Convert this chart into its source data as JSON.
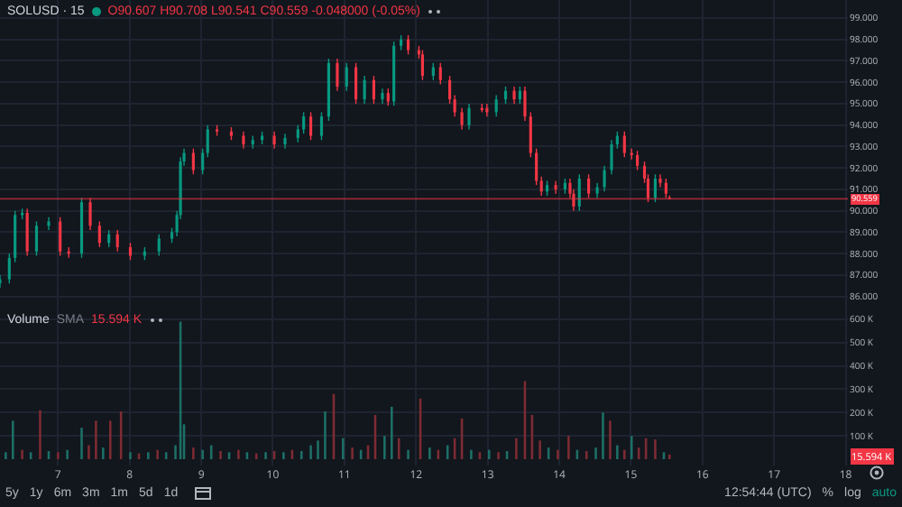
{
  "chart_data": [
    {
      "type": "candlestick",
      "title": "SOLUSD · 15",
      "annotations": [
        "O90.607 H90.708 L90.541 C90.559 -0.048000 (-0.05%)"
      ],
      "x": [
        6.19,
        6.32,
        6.4,
        6.5,
        6.57,
        6.7,
        6.87,
        7.03,
        7.15,
        7.33,
        7.45,
        7.58,
        7.71,
        7.83,
        8.01,
        8.21,
        8.41,
        8.59,
        8.66,
        8.71,
        8.76,
        8.89,
        9.02,
        9.09,
        9.22,
        9.42,
        9.59,
        9.72,
        9.85,
        10.02,
        10.17,
        10.35,
        10.43,
        10.53,
        10.68,
        10.78,
        10.9,
        11.03,
        11.16,
        11.28,
        11.41,
        11.53,
        11.61,
        11.69,
        11.79,
        11.89,
        12.04,
        12.09,
        12.24,
        12.34,
        12.47,
        12.54,
        12.64,
        12.74,
        12.92,
        12.99,
        13.12,
        13.25,
        13.37,
        13.45,
        13.52,
        13.6,
        13.68,
        13.75,
        13.83,
        13.95,
        14.08,
        14.15,
        14.2,
        14.28,
        14.41,
        14.53,
        14.63,
        14.73,
        14.81,
        14.91,
        15.01,
        15.09,
        15.19,
        15.24,
        15.34,
        15.41,
        15.49,
        15.54
      ],
      "ohlc": [
        [
          86.6,
          87.0,
          86.4,
          86.8
        ],
        [
          86.8,
          88.0,
          86.6,
          87.8
        ],
        [
          87.8,
          90.0,
          87.6,
          89.8
        ],
        [
          89.8,
          90.1,
          89.6,
          89.9
        ],
        [
          89.9,
          90.1,
          87.9,
          88.1
        ],
        [
          88.1,
          89.5,
          87.9,
          89.3
        ],
        [
          89.3,
          89.7,
          89.1,
          89.5
        ],
        [
          89.5,
          89.7,
          87.9,
          88.1
        ],
        [
          88.1,
          88.3,
          87.8,
          88.0
        ],
        [
          88.0,
          90.6,
          87.8,
          90.4
        ],
        [
          90.4,
          90.6,
          89.1,
          89.3
        ],
        [
          89.3,
          89.5,
          88.3,
          88.5
        ],
        [
          88.5,
          89.1,
          88.3,
          88.9
        ],
        [
          88.9,
          89.1,
          88.1,
          88.3
        ],
        [
          88.3,
          88.5,
          87.7,
          87.9
        ],
        [
          87.9,
          88.3,
          87.7,
          88.1
        ],
        [
          88.1,
          88.9,
          87.9,
          88.7
        ],
        [
          88.7,
          89.2,
          88.5,
          89.0
        ],
        [
          89.0,
          90.0,
          88.8,
          89.8
        ],
        [
          89.8,
          92.5,
          89.6,
          92.3
        ],
        [
          92.3,
          92.9,
          92.1,
          92.7
        ],
        [
          92.7,
          92.9,
          91.7,
          91.9
        ],
        [
          91.9,
          92.9,
          91.7,
          92.7
        ],
        [
          92.7,
          94.0,
          92.5,
          93.8
        ],
        [
          93.8,
          94.0,
          93.5,
          93.7
        ],
        [
          93.7,
          93.9,
          93.3,
          93.5
        ],
        [
          93.5,
          93.7,
          92.9,
          93.1
        ],
        [
          93.1,
          93.5,
          92.9,
          93.3
        ],
        [
          93.3,
          93.7,
          93.1,
          93.5
        ],
        [
          93.5,
          93.7,
          92.9,
          93.1
        ],
        [
          93.1,
          93.6,
          92.9,
          93.4
        ],
        [
          93.4,
          94.0,
          93.2,
          93.8
        ],
        [
          93.8,
          94.6,
          93.6,
          94.4
        ],
        [
          94.4,
          94.6,
          93.3,
          93.5
        ],
        [
          93.5,
          94.6,
          93.3,
          94.4
        ],
        [
          94.4,
          97.1,
          94.2,
          96.9
        ],
        [
          96.9,
          97.1,
          95.6,
          95.8
        ],
        [
          95.8,
          96.9,
          95.6,
          96.7
        ],
        [
          96.7,
          96.9,
          95.0,
          95.2
        ],
        [
          95.2,
          96.3,
          95.0,
          96.1
        ],
        [
          96.1,
          96.3,
          95.0,
          95.2
        ],
        [
          95.2,
          95.7,
          95.0,
          95.5
        ],
        [
          95.5,
          95.7,
          94.9,
          95.1
        ],
        [
          95.1,
          97.9,
          94.9,
          97.7
        ],
        [
          97.7,
          98.2,
          97.5,
          98.0
        ],
        [
          98.0,
          98.2,
          97.3,
          97.5
        ],
        [
          97.5,
          97.7,
          97.1,
          97.3
        ],
        [
          97.3,
          97.5,
          96.1,
          96.3
        ],
        [
          96.3,
          96.9,
          96.1,
          96.7
        ],
        [
          96.7,
          96.9,
          95.9,
          96.1
        ],
        [
          96.1,
          96.3,
          95.0,
          95.2
        ],
        [
          95.2,
          95.4,
          94.4,
          94.6
        ],
        [
          94.6,
          94.8,
          93.8,
          94.0
        ],
        [
          94.0,
          95.0,
          93.8,
          94.8
        ],
        [
          94.8,
          95.0,
          94.6,
          94.7
        ],
        [
          94.8,
          95.0,
          94.4,
          94.6
        ],
        [
          94.6,
          95.4,
          94.4,
          95.2
        ],
        [
          95.2,
          95.8,
          95.0,
          95.6
        ],
        [
          95.6,
          95.8,
          95.0,
          95.2
        ],
        [
          95.2,
          95.8,
          95.0,
          95.6
        ],
        [
          95.6,
          95.8,
          94.2,
          94.4
        ],
        [
          94.4,
          94.6,
          92.5,
          92.7
        ],
        [
          92.7,
          92.9,
          91.2,
          91.4
        ],
        [
          91.4,
          91.6,
          90.7,
          90.9
        ],
        [
          90.9,
          91.4,
          90.7,
          91.2
        ],
        [
          91.2,
          91.4,
          90.8,
          91.0
        ],
        [
          91.0,
          91.5,
          90.8,
          91.3
        ],
        [
          91.3,
          91.5,
          90.6,
          90.8
        ],
        [
          90.8,
          91.0,
          90.0,
          90.2
        ],
        [
          90.2,
          91.7,
          90.0,
          91.5
        ],
        [
          91.5,
          91.7,
          90.6,
          90.8
        ],
        [
          90.8,
          91.3,
          90.6,
          91.1
        ],
        [
          91.1,
          92.1,
          90.9,
          91.9
        ],
        [
          91.9,
          93.3,
          91.7,
          93.1
        ],
        [
          93.1,
          93.7,
          92.9,
          93.5
        ],
        [
          93.5,
          93.7,
          92.5,
          92.7
        ],
        [
          92.7,
          92.9,
          92.4,
          92.6
        ],
        [
          92.6,
          92.8,
          91.9,
          92.1
        ],
        [
          92.1,
          92.3,
          91.3,
          91.5
        ],
        [
          91.5,
          91.7,
          90.4,
          90.6
        ],
        [
          90.6,
          91.7,
          90.4,
          91.5
        ],
        [
          91.5,
          91.7,
          91.1,
          91.3
        ],
        [
          91.3,
          91.5,
          90.6,
          90.8
        ],
        [
          90.607,
          90.708,
          90.541,
          90.559
        ]
      ],
      "colors": [
        "#089981",
        "#089981",
        "#089981",
        "#089981",
        "#f23645",
        "#089981",
        "#089981",
        "#f23645",
        "#f23645",
        "#089981",
        "#f23645",
        "#f23645",
        "#089981",
        "#f23645",
        "#f23645",
        "#089981",
        "#089981",
        "#089981",
        "#089981",
        "#089981",
        "#089981",
        "#f23645",
        "#089981",
        "#089981",
        "#f23645",
        "#f23645",
        "#f23645",
        "#089981",
        "#089981",
        "#f23645",
        "#089981",
        "#089981",
        "#089981",
        "#f23645",
        "#089981",
        "#089981",
        "#f23645",
        "#089981",
        "#f23645",
        "#089981",
        "#f23645",
        "#089981",
        "#f23645",
        "#089981",
        "#089981",
        "#f23645",
        "#f23645",
        "#f23645",
        "#089981",
        "#f23645",
        "#f23645",
        "#f23645",
        "#f23645",
        "#089981",
        "#f23645",
        "#f23645",
        "#089981",
        "#089981",
        "#f23645",
        "#089981",
        "#f23645",
        "#f23645",
        "#f23645",
        "#f23645",
        "#089981",
        "#f23645",
        "#089981",
        "#f23645",
        "#f23645",
        "#089981",
        "#f23645",
        "#089981",
        "#089981",
        "#089981",
        "#089981",
        "#f23645",
        "#f23645",
        "#f23645",
        "#f23645",
        "#f23645",
        "#089981",
        "#f23645",
        "#f23645",
        "#f23645"
      ],
      "xlim": [
        6.19,
        18.03
      ],
      "xticks": [
        7,
        8,
        9,
        10,
        11,
        12,
        13,
        14,
        15,
        16,
        17,
        18
      ],
      "ylim": [
        85.52,
        99.84
      ],
      "yticks": [
        {
          "value": 86,
          "label": "86.000"
        },
        {
          "value": 87,
          "label": "87.000"
        },
        {
          "value": 88,
          "label": "88.000"
        },
        {
          "value": 89,
          "label": "89.000"
        },
        {
          "value": 90,
          "label": "90.000"
        },
        {
          "value": 91,
          "label": "91.000"
        },
        {
          "value": 92,
          "label": "92.000"
        },
        {
          "value": 93,
          "label": "93.000"
        },
        {
          "value": 94,
          "label": "94.000"
        },
        {
          "value": 95,
          "label": "95.000"
        },
        {
          "value": 96,
          "label": "96.000"
        },
        {
          "value": 97,
          "label": "97.000"
        },
        {
          "value": 98,
          "label": "98.000"
        },
        {
          "value": 99,
          "label": "99.000"
        }
      ],
      "tick_labels": "y",
      "grid": true,
      "ref_lines": [
        {
          "axis": "y",
          "value": 90.559,
          "label": "90.559",
          "color": "#f23645"
        }
      ]
    },
    {
      "type": "bar",
      "title": "Volume",
      "annotations": [
        "SMA",
        "15.594 K",
        {
          "text": "15.594 K",
          "y": 15594
        },
        "5y",
        "1y",
        "6m",
        "3m",
        "1m",
        "5d",
        "1d",
        "12:54:44 (UTC)",
        "%",
        "log",
        "auto"
      ],
      "x": [
        6.27,
        6.37,
        6.5,
        6.62,
        6.75,
        6.87,
        7.0,
        7.13,
        7.33,
        7.43,
        7.53,
        7.63,
        7.73,
        7.88,
        8.01,
        8.13,
        8.26,
        8.39,
        8.51,
        8.64,
        8.71,
        8.76,
        8.89,
        9.02,
        9.14,
        9.27,
        9.39,
        9.52,
        9.64,
        9.77,
        9.9,
        10.02,
        10.15,
        10.27,
        10.4,
        10.53,
        10.63,
        10.73,
        10.85,
        10.98,
        11.11,
        11.23,
        11.33,
        11.43,
        11.56,
        11.66,
        11.76,
        11.89,
        12.06,
        12.19,
        12.31,
        12.44,
        12.54,
        12.64,
        12.77,
        12.89,
        13.02,
        13.15,
        13.27,
        13.4,
        13.52,
        13.62,
        13.73,
        13.85,
        13.98,
        14.13,
        14.25,
        14.38,
        14.51,
        14.61,
        14.71,
        14.81,
        14.91,
        15.01,
        15.11,
        15.21,
        15.34,
        15.46,
        15.54
      ],
      "values": [
        30000,
        165000,
        40000,
        30000,
        210000,
        35000,
        30000,
        40000,
        135000,
        60000,
        165000,
        50000,
        165000,
        205000,
        30000,
        25000,
        30000,
        40000,
        30000,
        60000,
        590000,
        150000,
        50000,
        40000,
        60000,
        35000,
        30000,
        40000,
        30000,
        25000,
        30000,
        35000,
        30000,
        40000,
        35000,
        60000,
        80000,
        205000,
        280000,
        90000,
        50000,
        40000,
        60000,
        190000,
        100000,
        225000,
        90000,
        40000,
        260000,
        50000,
        40000,
        60000,
        90000,
        175000,
        40000,
        30000,
        40000,
        30000,
        35000,
        90000,
        335000,
        190000,
        80000,
        50000,
        40000,
        100000,
        40000,
        35000,
        50000,
        200000,
        165000,
        60000,
        40000,
        100000,
        50000,
        90000,
        85000,
        30000,
        20000
      ],
      "colors": [
        "#1d6f66",
        "#1d6f66",
        "#7d2b33",
        "#1d6f66",
        "#7d2b33",
        "#1d6f66",
        "#7d2b33",
        "#1d6f66",
        "#1d6f66",
        "#7d2b33",
        "#7d2b33",
        "#1d6f66",
        "#7d2b33",
        "#7d2b33",
        "#1d6f66",
        "#7d2b33",
        "#1d6f66",
        "#7d2b33",
        "#1d6f66",
        "#1d6f66",
        "#1d6f66",
        "#1d6f66",
        "#7d2b33",
        "#1d6f66",
        "#1d6f66",
        "#7d2b33",
        "#1d6f66",
        "#7d2b33",
        "#1d6f66",
        "#7d2b33",
        "#1d6f66",
        "#7d2b33",
        "#1d6f66",
        "#7d2b33",
        "#1d6f66",
        "#1d6f66",
        "#1d6f66",
        "#1d6f66",
        "#7d2b33",
        "#1d6f66",
        "#7d2b33",
        "#1d6f66",
        "#7d2b33",
        "#7d2b33",
        "#1d6f66",
        "#1d6f66",
        "#7d2b33",
        "#1d6f66",
        "#7d2b33",
        "#1d6f66",
        "#7d2b33",
        "#1d6f66",
        "#7d2b33",
        "#7d2b33",
        "#1d6f66",
        "#7d2b33",
        "#1d6f66",
        "#7d2b33",
        "#1d6f66",
        "#7d2b33",
        "#7d2b33",
        "#7d2b33",
        "#7d2b33",
        "#1d6f66",
        "#7d2b33",
        "#7d2b33",
        "#1d6f66",
        "#7d2b33",
        "#1d6f66",
        "#1d6f66",
        "#7d2b33",
        "#1d6f66",
        "#7d2b33",
        "#1d6f66",
        "#7d2b33",
        "#7d2b33",
        "#7d2b33",
        "#1d6f66",
        "#7d2b33"
      ],
      "xlim": [
        6.19,
        18.03
      ],
      "xticks": [
        7,
        8,
        9,
        10,
        11,
        12,
        13,
        14,
        15,
        16,
        17,
        18
      ],
      "ylim": [
        -27000,
        654000
      ],
      "yticks": [
        {
          "value": 100000,
          "label": "100 K"
        },
        {
          "value": 200000,
          "label": "200 K"
        },
        {
          "value": 300000,
          "label": "300 K"
        },
        {
          "value": 400000,
          "label": "400 K"
        },
        {
          "value": 500000,
          "label": "500 K"
        },
        {
          "value": 600000,
          "label": "600 K"
        }
      ],
      "grid": true
    }
  ]
}
